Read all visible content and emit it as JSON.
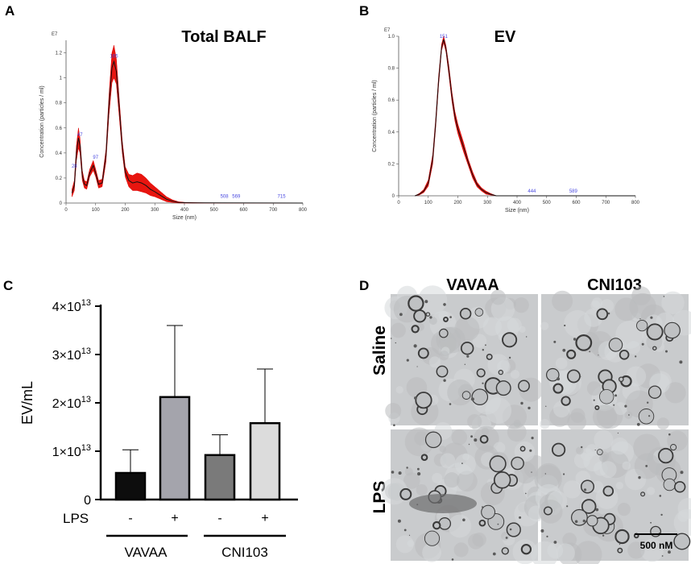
{
  "panels": {
    "a": "A",
    "b": "B",
    "c": "C",
    "d": "D"
  },
  "chart_data": [
    {
      "type": "line",
      "panel": "A",
      "title": "Total BALF",
      "xlabel": "Size (nm)",
      "ylabel": "Concentration (particles / ml)",
      "exponent": "E7",
      "xlim": [
        0,
        800
      ],
      "ylim": [
        0,
        1.3
      ],
      "xticks": [
        0,
        100,
        200,
        300,
        400,
        500,
        600,
        700,
        800
      ],
      "yticks": [
        0,
        0.2,
        0.4,
        0.6,
        0.8,
        1.0,
        1.2
      ],
      "ytick_labels": [
        "0",
        "0.2",
        "0.4",
        "0.6",
        "0.8",
        "1",
        "1.2"
      ],
      "x": [
        20,
        28,
        35,
        42,
        47,
        55,
        62,
        70,
        80,
        92,
        100,
        110,
        122,
        135,
        145,
        155,
        162,
        170,
        180,
        190,
        200,
        212,
        225,
        240,
        255,
        270,
        285,
        300,
        320,
        340,
        360,
        380,
        400,
        430,
        470,
        800
      ],
      "mean": [
        0.08,
        0.14,
        0.4,
        0.52,
        0.46,
        0.22,
        0.15,
        0.14,
        0.24,
        0.3,
        0.24,
        0.15,
        0.16,
        0.38,
        0.78,
        1.08,
        1.13,
        1.05,
        0.75,
        0.45,
        0.25,
        0.18,
        0.16,
        0.17,
        0.16,
        0.14,
        0.11,
        0.09,
        0.06,
        0.03,
        0.015,
        0.005,
        0.003,
        0.002,
        0.001,
        0.0
      ],
      "err": [
        0.03,
        0.04,
        0.06,
        0.08,
        0.06,
        0.04,
        0.03,
        0.03,
        0.03,
        0.04,
        0.03,
        0.03,
        0.03,
        0.05,
        0.08,
        0.12,
        0.13,
        0.1,
        0.07,
        0.05,
        0.04,
        0.05,
        0.06,
        0.07,
        0.07,
        0.06,
        0.05,
        0.04,
        0.03,
        0.02,
        0.01,
        0.005,
        0.003,
        0.002,
        0.001,
        0.0
      ],
      "peak_labels": [
        {
          "x": 28,
          "y": 0.27,
          "label": "28"
        },
        {
          "x": 47,
          "y": 0.52,
          "label": "47"
        },
        {
          "x": 100,
          "y": 0.34,
          "label": "97"
        },
        {
          "x": 162,
          "y": 1.15,
          "label": "165"
        },
        {
          "x": 535,
          "y": 0.03,
          "label": "508"
        },
        {
          "x": 575,
          "y": 0.03,
          "label": "569"
        },
        {
          "x": 728,
          "y": 0.03,
          "label": "715"
        }
      ]
    },
    {
      "type": "line",
      "panel": "B",
      "title": "EV",
      "xlabel": "Size (nm)",
      "ylabel": "Concentration (particles / ml)",
      "exponent": "E7",
      "xlim": [
        0,
        800
      ],
      "ylim": [
        0,
        1.0
      ],
      "xticks": [
        0,
        100,
        200,
        300,
        400,
        500,
        600,
        700,
        800
      ],
      "yticks": [
        0,
        0.2,
        0.4,
        0.6,
        0.8,
        1.0
      ],
      "ytick_labels": [
        "0",
        "0.2",
        "0.4",
        "0.6",
        "0.8",
        "1.0"
      ],
      "x": [
        55,
        70,
        85,
        100,
        115,
        125,
        135,
        145,
        152,
        160,
        170,
        180,
        190,
        200,
        210,
        220,
        235,
        250,
        265,
        280,
        295,
        310,
        330,
        400,
        800
      ],
      "mean": [
        0.0,
        0.01,
        0.03,
        0.08,
        0.23,
        0.45,
        0.72,
        0.93,
        0.98,
        0.92,
        0.78,
        0.62,
        0.5,
        0.42,
        0.36,
        0.3,
        0.21,
        0.13,
        0.07,
        0.04,
        0.02,
        0.01,
        0.0,
        0.0,
        0.0
      ],
      "err": [
        0.0,
        0.005,
        0.01,
        0.02,
        0.03,
        0.03,
        0.03,
        0.02,
        0.02,
        0.02,
        0.03,
        0.03,
        0.03,
        0.03,
        0.03,
        0.03,
        0.02,
        0.02,
        0.015,
        0.01,
        0.01,
        0.005,
        0.0,
        0.0,
        0.0
      ],
      "peak_labels": [
        {
          "x": 152,
          "y": 0.98,
          "label": "151"
        },
        {
          "x": 450,
          "y": 0.01,
          "label": "444"
        },
        {
          "x": 590,
          "y": 0.01,
          "label": "589"
        }
      ]
    },
    {
      "type": "bar",
      "panel": "C",
      "ylabel": "EV/mL",
      "ylim": [
        0,
        40000000000000.0
      ],
      "yticks": [
        0,
        10000000000000.0,
        20000000000000.0,
        30000000000000.0,
        40000000000000.0
      ],
      "ytick_labels": [
        "0",
        "1×10",
        "2×10",
        "3×10",
        "4×10"
      ],
      "ytick_exp": "13",
      "xrow_label": "LPS",
      "lps_labels": [
        "-",
        "+",
        "-",
        "+"
      ],
      "groups": [
        "VAVAA",
        "CNI103"
      ],
      "bars": [
        {
          "group": "VAVAA",
          "lps": "-",
          "value": 5500000000000.0,
          "err": 4800000000000.0,
          "color": "#0d0d0d"
        },
        {
          "group": "VAVAA",
          "lps": "+",
          "value": 21200000000000.0,
          "err": 14800000000000.0,
          "color": "#a4a4ac"
        },
        {
          "group": "CNI103",
          "lps": "-",
          "value": 9200000000000.0,
          "err": 4200000000000.0,
          "color": "#7a7a7a"
        },
        {
          "group": "CNI103",
          "lps": "+",
          "value": 15800000000000.0,
          "err": 11200000000000.0,
          "color": "#dcdcdc"
        }
      ]
    }
  ],
  "panel_d": {
    "columns": [
      "VAVAA",
      "CNI103"
    ],
    "rows": [
      "Saline",
      "LPS"
    ],
    "scale_bar": "500 nM"
  }
}
